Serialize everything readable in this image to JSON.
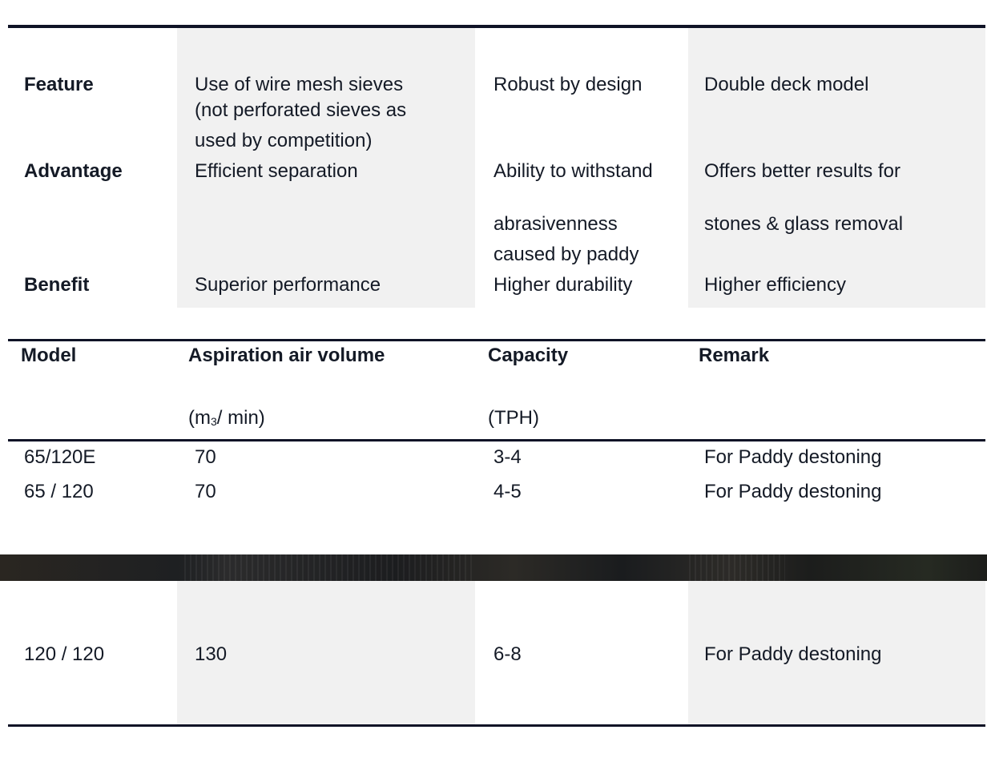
{
  "fab_table": {
    "rows": [
      {
        "label": "Feature",
        "cells": [
          [
            "Use of wire mesh sieves",
            "(not perforated sieves as",
            "used by competition)"
          ],
          [
            "Robust by design"
          ],
          [
            "Double deck model"
          ]
        ]
      },
      {
        "label": "Advantage",
        "cells": [
          [
            "Efficient separation"
          ],
          [
            "Ability to withstand",
            "abrasivenness",
            "caused by paddy"
          ],
          [
            "Offers better results for",
            "stones & glass removal"
          ]
        ]
      },
      {
        "label": "Benefit",
        "cells": [
          [
            "Superior performance"
          ],
          [
            "Higher durability"
          ],
          [
            "Higher efficiency"
          ]
        ]
      }
    ]
  },
  "spec_table": {
    "headers": {
      "model": "Model",
      "air": "Aspiration air volume",
      "air_unit_prefix": "(m",
      "air_unit_sub": "3",
      "air_unit_suffix": "/ min)",
      "capacity": "Capacity",
      "capacity_unit": "(TPH)",
      "remark": "Remark"
    },
    "rows": [
      {
        "model": "65/120E",
        "air": "70",
        "capacity": "3-4",
        "remark": "For Paddy destoning"
      },
      {
        "model": "65 / 120",
        "air": "70",
        "capacity": "4-5",
        "remark": "For Paddy destoning"
      },
      {
        "model": "120 / 120",
        "air": "130",
        "capacity": "6-8",
        "remark": "For Paddy destoning"
      }
    ]
  },
  "colors": {
    "rule": "#0f1326",
    "shade": "#f1f1f1",
    "text": "#141a26",
    "photo_band": "#1e2022"
  }
}
